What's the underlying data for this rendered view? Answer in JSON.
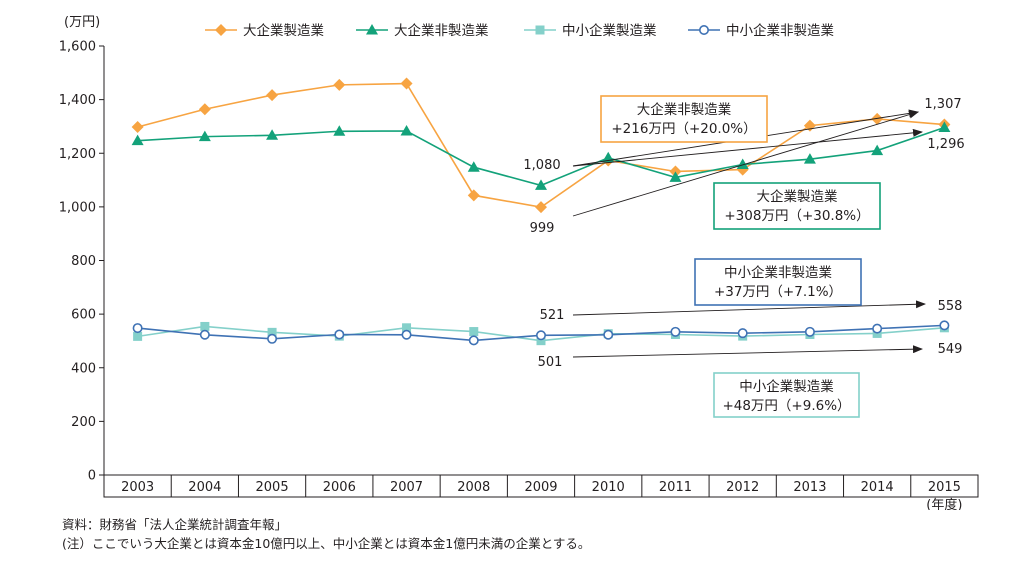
{
  "chart_data": {
    "type": "line",
    "y_unit_label": "(万円)",
    "x_unit_label": "(年度)",
    "x": [
      "2003",
      "2004",
      "2005",
      "2006",
      "2007",
      "2008",
      "2009",
      "2010",
      "2011",
      "2012",
      "2013",
      "2014",
      "2015"
    ],
    "ylim": [
      0,
      1600
    ],
    "yticks": [
      0,
      200,
      400,
      600,
      800,
      1000,
      1200,
      1400,
      1600
    ],
    "ytick_labels": [
      "0",
      "200",
      "400",
      "600",
      "800",
      "1,000",
      "1,200",
      "1,400",
      "1,600"
    ],
    "legend_position": "top",
    "series": [
      {
        "name": "大企業製造業",
        "color": "#f7a442",
        "marker": "diamond",
        "values": [
          1298,
          1364,
          1417,
          1455,
          1460,
          1043,
          999,
          1173,
          1132,
          1139,
          1303,
          1328,
          1307
        ]
      },
      {
        "name": "大企業非製造業",
        "color": "#13a27a",
        "marker": "triangle",
        "values": [
          1247,
          1262,
          1267,
          1282,
          1283,
          1148,
          1080,
          1183,
          1110,
          1158,
          1178,
          1210,
          1296
        ]
      },
      {
        "name": "中小企業製造業",
        "color": "#84d0ca",
        "marker": "square",
        "values": [
          517,
          554,
          532,
          518,
          549,
          535,
          501,
          527,
          524,
          518,
          524,
          528,
          549
        ]
      },
      {
        "name": "中小企業非製造業",
        "color": "#3f72b4",
        "marker": "circle",
        "values": [
          548,
          523,
          508,
          524,
          523,
          502,
          521,
          523,
          534,
          529,
          534,
          546,
          558
        ]
      }
    ],
    "annotations": {
      "labels": [
        "1,307",
        "1,296",
        "1,080",
        "999",
        "521",
        "558",
        "501",
        "549"
      ],
      "boxes": [
        {
          "title": "大企業非製造業",
          "change": "+216万円（+20.0%）",
          "color": "#f7a442"
        },
        {
          "title": "大企業製造業",
          "change": "+308万円（+30.8%）",
          "color": "#13a27a"
        },
        {
          "title": "中小企業非製造業",
          "change": "+37万円（+7.1%）",
          "color": "#3f72b4"
        },
        {
          "title": "中小企業製造業",
          "change": "+48万円（+9.6%）",
          "color": "#84d0ca"
        }
      ]
    }
  },
  "footer": {
    "source": "資料：財務省「法人企業統計調査年報」",
    "note": "(注）ここでいう大企業とは資本金10億円以上、中小企業とは資本金1億円未満の企業とする。"
  }
}
